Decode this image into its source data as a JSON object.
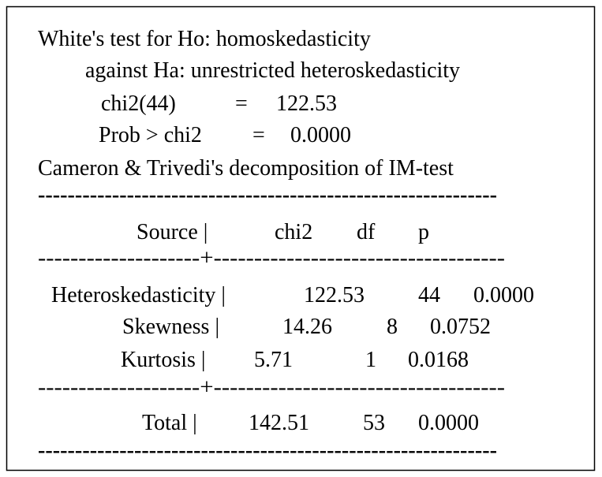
{
  "white_test": {
    "title": "White's test for Ho: homoskedasticity",
    "alternative": "against Ha: unrestricted heteroskedasticity",
    "stat_label": "chi2(44)",
    "stat_eq": "=",
    "stat_value": "122.53",
    "prob_label": "Prob > chi2",
    "prob_eq": "=",
    "prob_value": "0.0000"
  },
  "decomposition": {
    "title": "Cameron & Trivedi's decomposition of IM-test",
    "rule_top": "--------------------------------------------------------------",
    "header": [
      "Source |",
      "chi2",
      "df",
      "p"
    ],
    "rule_head": "--------------------+------------------------------------",
    "rows": [
      [
        "Heteroskedasticity |",
        "122.53",
        "44",
        "0.0000"
      ],
      [
        "Skewness |",
        "14.26",
        "8",
        "0.0752"
      ],
      [
        "Kurtosis |",
        "5.71",
        "1",
        "0.0168"
      ]
    ],
    "rule_total": "--------------------+------------------------------------",
    "total": [
      "Total |",
      "142.51",
      "53",
      "0.0000"
    ],
    "rule_end": "--------------------------------------------------------------"
  }
}
